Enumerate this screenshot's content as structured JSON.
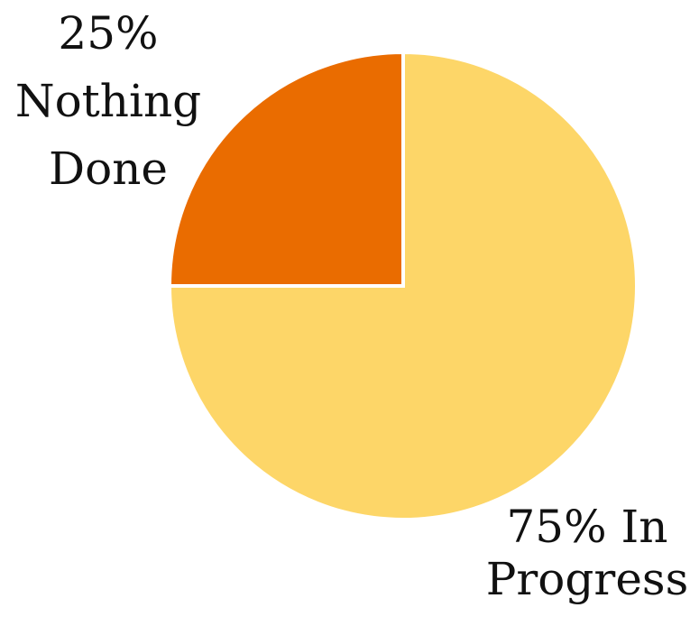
{
  "chart_data": {
    "type": "pie",
    "title": "",
    "slices": [
      {
        "label": "Nothing Done",
        "value": 25,
        "color": "#EA6C00",
        "label_lines": [
          "25%",
          "Nothing",
          "Done"
        ]
      },
      {
        "label": "In Progress",
        "value": 75,
        "color": "#FDD668",
        "label_lines": [
          "75% In",
          "Progress"
        ]
      }
    ],
    "start_angle_deg": 0,
    "direction": "counterclockwise",
    "legend": "none"
  }
}
